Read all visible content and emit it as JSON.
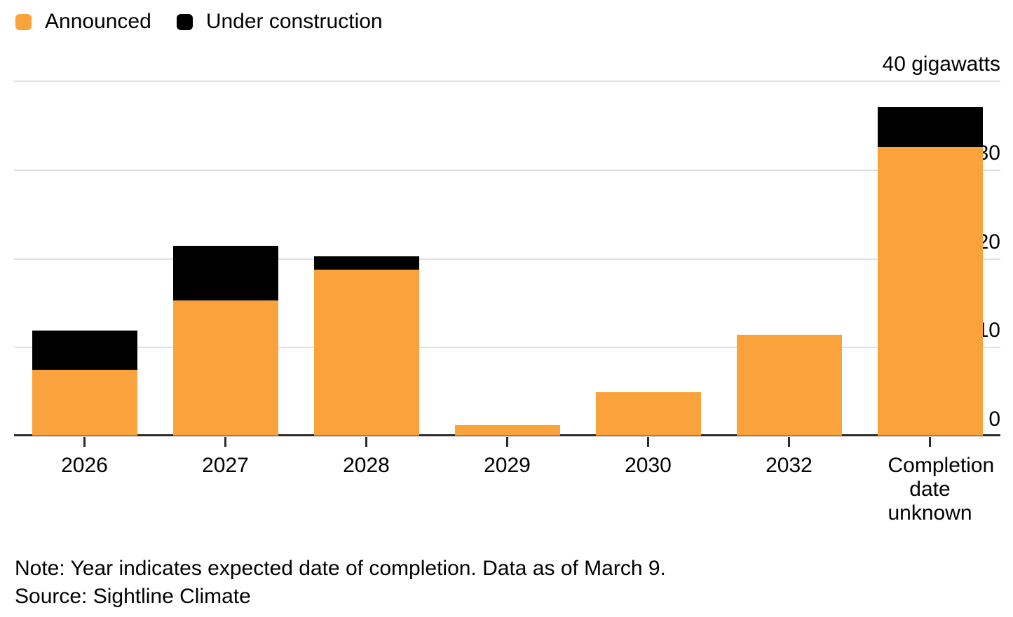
{
  "chart_data": {
    "type": "bar",
    "stacked": true,
    "categories": [
      "2026",
      "2027",
      "2028",
      "2029",
      "2030",
      "2032",
      "Completion date unknown"
    ],
    "series": [
      {
        "name": "Announced",
        "color": "#FAA23B",
        "values": [
          7.4,
          15.2,
          18.7,
          1.2,
          4.9,
          11.4,
          32.5
        ]
      },
      {
        "name": "Under construction",
        "color": "#000000",
        "values": [
          4.4,
          6.2,
          1.5,
          0,
          0,
          0,
          4.5
        ]
      }
    ],
    "ylim": [
      0,
      40
    ],
    "yticks": [
      {
        "value": 0,
        "label": "0"
      },
      {
        "value": 10,
        "label": "10"
      },
      {
        "value": 20,
        "label": "20"
      },
      {
        "value": 30,
        "label": "30"
      },
      {
        "value": 40,
        "label": "40 gigawatts"
      }
    ],
    "unit": "gigawatts",
    "grid": true,
    "legend_position": "top-left",
    "gridline_color": "#E1E1E1",
    "axis_color": "#2B2B2B",
    "text_color": "#000000",
    "background_color": "#FFFFFF"
  },
  "footer": {
    "note": "Note: Year indicates expected date of completion. Data as of March 9.",
    "source": "Source: Sightline Climate"
  }
}
